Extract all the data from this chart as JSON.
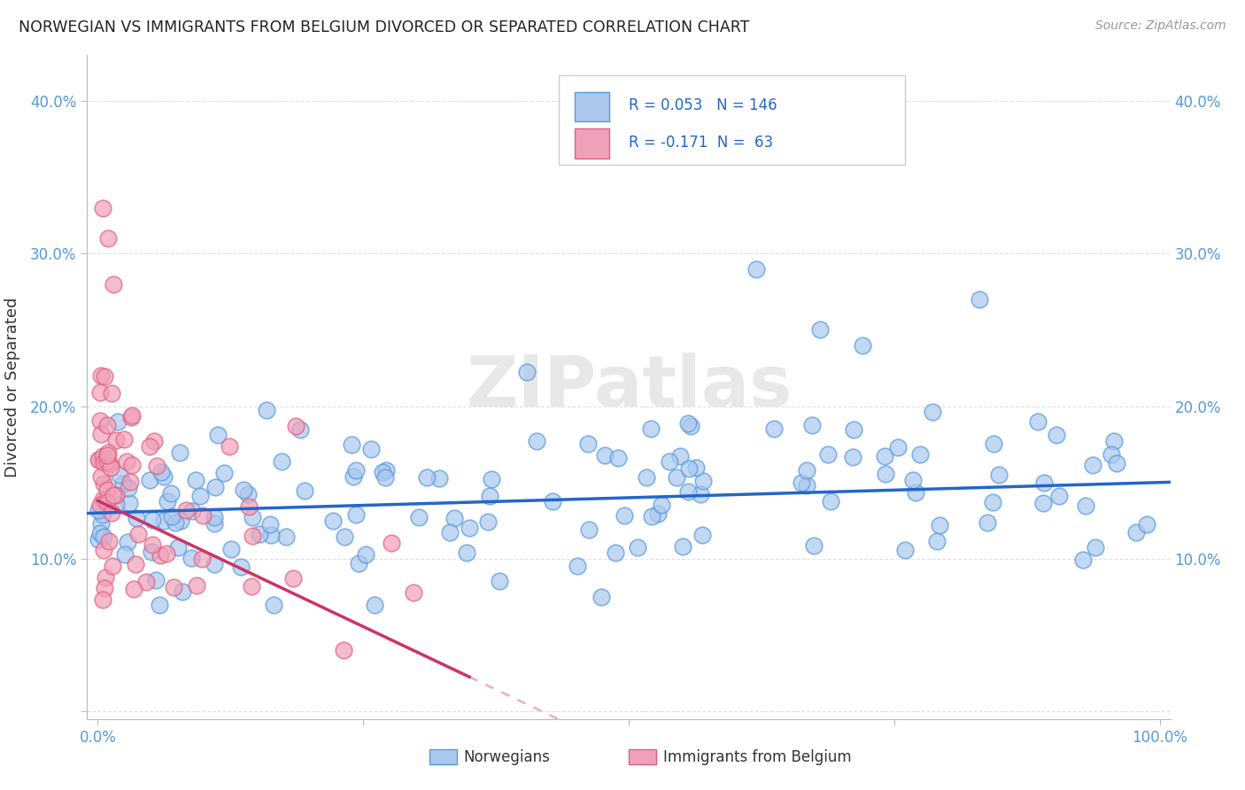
{
  "title": "NORWEGIAN VS IMMIGRANTS FROM BELGIUM DIVORCED OR SEPARATED CORRELATION CHART",
  "source": "Source: ZipAtlas.com",
  "ylabel": "Divorced or Separated",
  "r1": 0.053,
  "n1": 146,
  "r2": -0.171,
  "n2": 63,
  "color1": "#aac8ee",
  "color2": "#f0a0b8",
  "edge_color1": "#5599dd",
  "edge_color2": "#e06080",
  "line_color1": "#2266cc",
  "line_color2": "#cc3366",
  "dashed_color": "#f0aabb",
  "background": "#ffffff",
  "legend_label1": "Norwegians",
  "legend_label2": "Immigrants from Belgium",
  "grid_color": "#cccccc",
  "title_color": "#222222",
  "tick_color": "#5599dd",
  "ylabel_color": "#333333",
  "source_color": "#999999",
  "watermark_color": "#e8e8e8"
}
